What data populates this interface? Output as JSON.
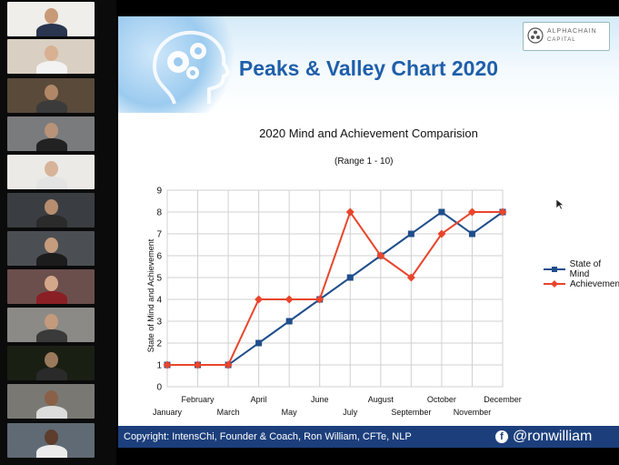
{
  "slide": {
    "title": "Peaks & Valley Chart 2020",
    "logo_line1": "ALPHACHAIN",
    "logo_line2": "CAPITAL",
    "chart_title": "2020 Mind and Achievement Comparision",
    "chart_subtitle": "(Range 1 - 10)",
    "footer": "Copyright: IntensChi, Founder & Coach, Ron William, CFTe, NLP",
    "handle": "@ronwilliam"
  },
  "participants": [
    {
      "bg": "#f0eeea",
      "skin": "#c89a78",
      "shirt": "#2a3550"
    },
    {
      "bg": "#d9cfc2",
      "skin": "#d8b092",
      "shirt": "#f2f2f2"
    },
    {
      "bg": "#5a4a3a",
      "skin": "#b08868",
      "shirt": "#3b3b3b"
    },
    {
      "bg": "#7a7b7d",
      "skin": "#b99379",
      "shirt": "#222222"
    },
    {
      "bg": "#eceae6",
      "skin": "#d7b39a",
      "shirt": "#e4e4e4"
    },
    {
      "bg": "#3a3e42",
      "skin": "#b78d70",
      "shirt": "#2b2b2b"
    },
    {
      "bg": "#4b4f54",
      "skin": "#c59c7e",
      "shirt": "#1c1c1c"
    },
    {
      "bg": "#6b4f4d",
      "skin": "#d3a88a",
      "shirt": "#8a1f25"
    },
    {
      "bg": "#8b8a86",
      "skin": "#c49a7c",
      "shirt": "#3a3a3a"
    },
    {
      "bg": "#1a1f14",
      "skin": "#9b7a5c",
      "shirt": "#2a2a2a"
    },
    {
      "bg": "#7a7873",
      "skin": "#8a6148",
      "shirt": "#dcdcdc"
    },
    {
      "bg": "#5f6a74",
      "skin": "#5d3d2c",
      "shirt": "#ececec"
    }
  ],
  "chart_data": {
    "type": "line",
    "x": [
      "January",
      "February",
      "March",
      "April",
      "May",
      "June",
      "July",
      "August",
      "September",
      "October",
      "November",
      "December"
    ],
    "ylabel": "State of Mind and Achievement",
    "ylim": [
      0,
      9
    ],
    "yticks": [
      0,
      1,
      2,
      3,
      4,
      5,
      6,
      7,
      8,
      9
    ],
    "grid": true,
    "legend": "right",
    "series": [
      {
        "name": "State of Mind",
        "color": "#1f4e8c",
        "marker": "square",
        "values": [
          1,
          1,
          1,
          2,
          3,
          4,
          5,
          6,
          7,
          8,
          7,
          8
        ]
      },
      {
        "name": "Achievement",
        "color": "#e8452c",
        "marker": "diamond",
        "values": [
          1,
          1,
          1,
          4,
          4,
          4,
          8,
          6,
          5,
          7,
          8,
          8
        ]
      }
    ]
  }
}
